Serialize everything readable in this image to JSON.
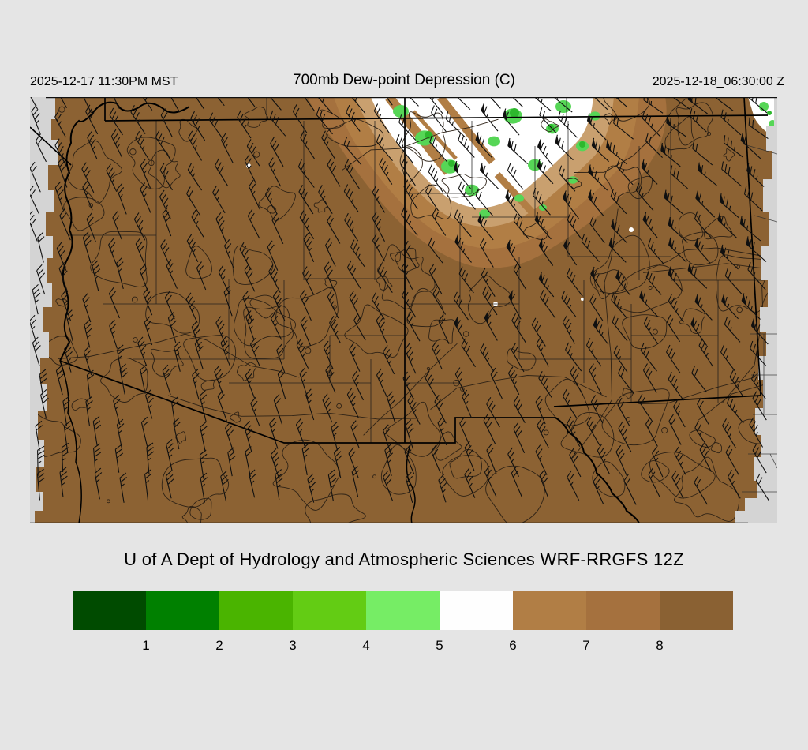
{
  "header": {
    "valid_local": "2025-12-17 11:30PM MST",
    "title": "700mb Dew-point Depression (C)",
    "valid_utc": "2025-12-18_06:30:00 Z"
  },
  "credit": "U of A Dept of Hydrology and Atmospheric Sciences WRF-RRGFS 12Z",
  "colorbar": {
    "tick_labels": [
      "1",
      "2",
      "3",
      "4",
      "5",
      "6",
      "7",
      "8"
    ],
    "segment_colors": [
      "#004b00",
      "#008000",
      "#4ab400",
      "#63cc14",
      "#76ed65",
      "#fefefe",
      "#b17e45",
      "#a5713e",
      "#8a6133"
    ]
  },
  "map": {
    "colors": {
      "page_bg": "#e5e5e5",
      "margin_gray": "#d4d4d4",
      "base_brown": "#8c6233",
      "brown_7": "#b17e45",
      "brown_8": "#a5713e",
      "pale_tan": "#c9a06f",
      "moist_white": "#ffffff",
      "green": "#56d656",
      "green_dark": "#2db82d",
      "contour": "#2e2216",
      "barb": "#101010",
      "boundary": "#000000"
    }
  }
}
